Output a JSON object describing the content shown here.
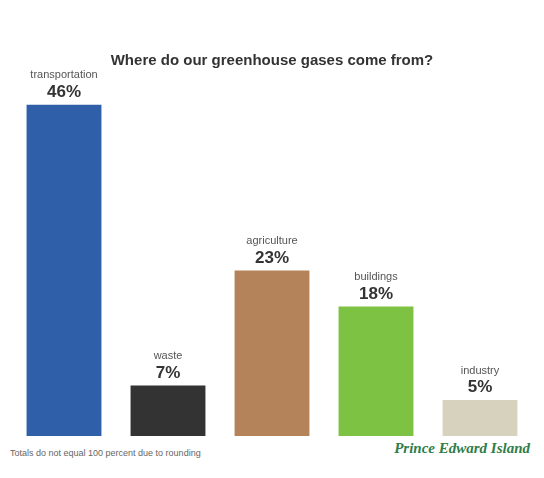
{
  "chart_data": {
    "type": "bar",
    "title": "Where do our greenhouse gases come from?",
    "categories": [
      "transportation",
      "waste",
      "agriculture",
      "buildings",
      "industry"
    ],
    "values": [
      46,
      7,
      23,
      18,
      5
    ],
    "value_labels": [
      "46%",
      "7%",
      "23%",
      "18%",
      "5%"
    ],
    "colors": [
      "#2f5fa8",
      "#333333",
      "#b5835a",
      "#7dc242",
      "#d6d2bd"
    ],
    "data_labels": true,
    "tick_labels": false,
    "grid": false,
    "annotations": [
      "Totals do not equal 100 percent due to rounding",
      "Prince Edward Island"
    ]
  }
}
